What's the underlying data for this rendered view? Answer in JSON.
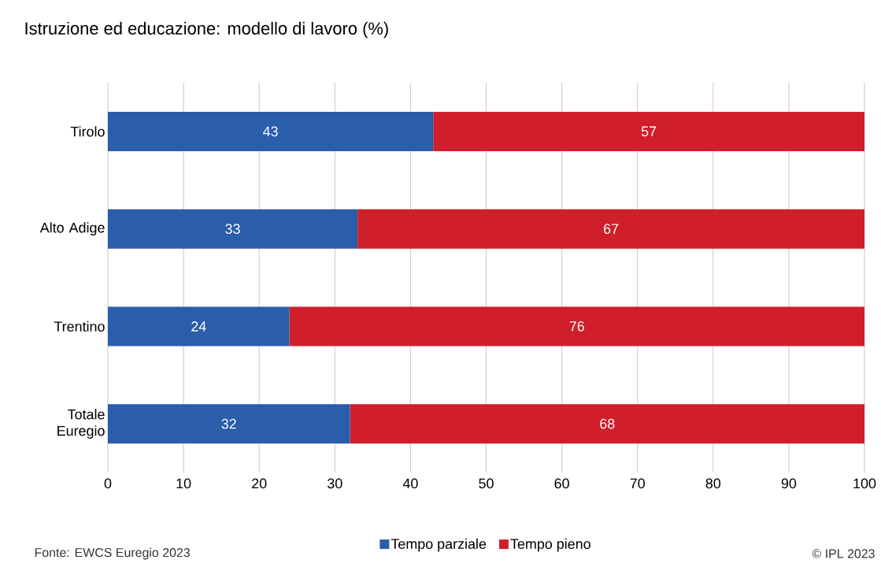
{
  "chart_data": {
    "type": "bar",
    "orientation": "horizontal",
    "stacked": true,
    "title": "Istruzione ed educazione: modello di lavoro (%)",
    "categories": [
      "Tirolo",
      "Alto Adige",
      "Trentino",
      "Totale Euregio"
    ],
    "series": [
      {
        "name": "Tempo parziale",
        "color": "#2a5daa",
        "values": [
          43,
          33,
          24,
          32
        ]
      },
      {
        "name": "Tempo pieno",
        "color": "#d01f2a",
        "values": [
          57,
          67,
          76,
          68
        ]
      }
    ],
    "xlim": [
      0,
      100
    ],
    "xticks": [
      0,
      10,
      20,
      30,
      40,
      50,
      60,
      70,
      80,
      90,
      100
    ],
    "grid": "x",
    "legend": "bottom",
    "data_labels": true,
    "annotations": [
      "Fonte: EWCS Euregio 2023",
      "© IPL 2023"
    ]
  }
}
